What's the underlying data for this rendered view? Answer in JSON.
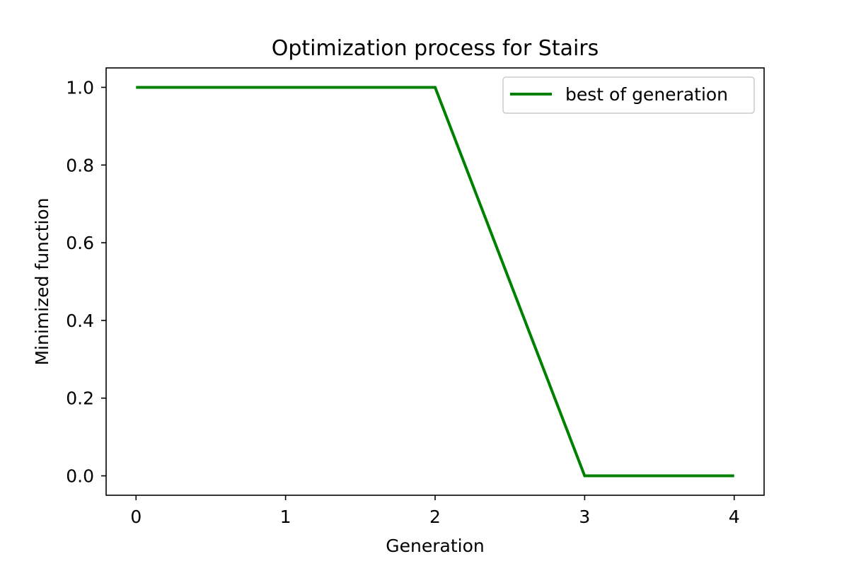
{
  "chart_data": {
    "type": "line",
    "title": "Optimization process for Stairs",
    "xlabel": "Generation",
    "ylabel": "Minimized function",
    "x": [
      0,
      1,
      2,
      3,
      4
    ],
    "series": [
      {
        "name": "best of generation",
        "values": [
          1.0,
          1.0,
          1.0,
          0.0,
          0.0
        ],
        "color": "#008000"
      }
    ],
    "xlim": [
      -0.2,
      4.2
    ],
    "ylim": [
      -0.05,
      1.05
    ],
    "x_ticks": [
      0,
      1,
      2,
      3,
      4
    ],
    "x_tick_labels": [
      "0",
      "1",
      "2",
      "3",
      "4"
    ],
    "y_ticks": [
      0.0,
      0.2,
      0.4,
      0.6,
      0.8,
      1.0
    ],
    "y_tick_labels": [
      "0.0",
      "0.2",
      "0.4",
      "0.6",
      "0.8",
      "1.0"
    ],
    "grid": false,
    "legend_position": "top-right"
  }
}
